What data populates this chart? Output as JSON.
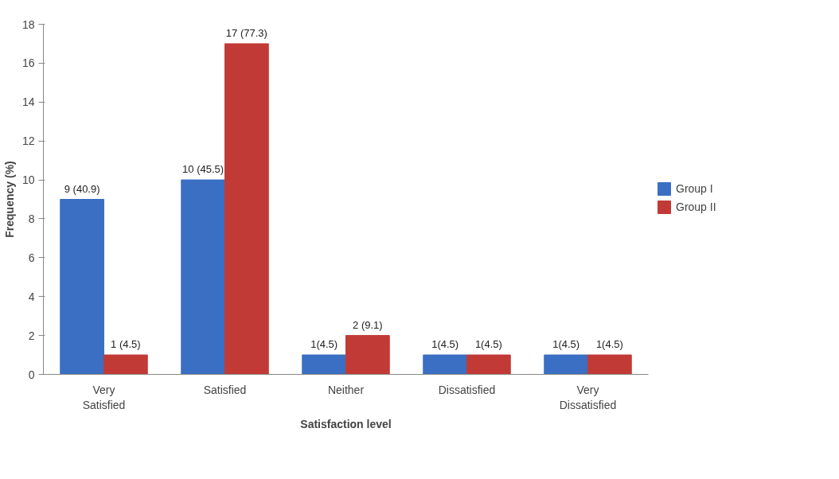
{
  "chart_data": {
    "type": "bar",
    "xlabel": "Satisfaction level",
    "ylabel": "Frequency (%)",
    "categories": [
      "Very Satisfied",
      "Satisfied",
      "Neither",
      "Dissatisfied",
      "Very Dissatisfied"
    ],
    "series": [
      {
        "name": "Group I",
        "color": "#3a6fc4",
        "values": [
          9,
          10,
          1,
          1,
          1
        ],
        "value_labels": [
          "9 (40.9)",
          "10 (45.5)",
          "1(4.5)",
          "1(4.5)",
          "1(4.5)"
        ]
      },
      {
        "name": "Group II",
        "color": "#c23a35",
        "values": [
          1,
          17,
          2,
          1,
          1
        ],
        "value_labels": [
          "1 (4.5)",
          "17 (77.3)",
          "2 (9.1)",
          "1(4.5)",
          "1(4.5)"
        ]
      }
    ],
    "ylim": [
      0,
      18
    ],
    "yticks": [
      0,
      2,
      4,
      6,
      8,
      10,
      12,
      14,
      16,
      18
    ],
    "grid": false,
    "legend": "right"
  }
}
